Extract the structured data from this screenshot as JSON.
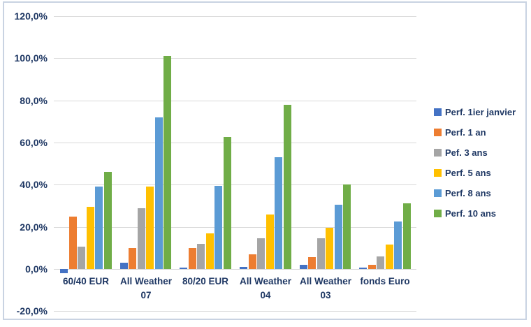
{
  "colors": {
    "text": "#1F3864",
    "gridline": "#D9D9D9",
    "frame_border": "#C9D3E2",
    "background": "#FFFFFF"
  },
  "chart_data": {
    "type": "bar",
    "title": "",
    "xlabel": "",
    "ylabel": "",
    "categories": [
      "60/40 EUR",
      "All Weather 07",
      "80/20 EUR",
      "All Weather 04",
      "All Weather 03",
      "fonds Euro"
    ],
    "category_display_lines": [
      [
        "60/40 EUR"
      ],
      [
        "All Weather",
        "07"
      ],
      [
        "80/20 EUR"
      ],
      [
        "All Weather",
        "04"
      ],
      [
        "All Weather",
        "03"
      ],
      [
        "fonds Euro"
      ]
    ],
    "series": [
      {
        "name": "Perf. 1ier janvier",
        "color": "#4472C4",
        "values": [
          -2,
          3,
          0.5,
          1,
          2,
          0.5
        ]
      },
      {
        "name": "Perf. 1 an",
        "color": "#ED7D31",
        "values": [
          25,
          10,
          10,
          7,
          5.5,
          2
        ]
      },
      {
        "name": "Pef. 3 ans",
        "color": "#A5A5A5",
        "values": [
          10.5,
          29,
          12,
          14.5,
          14.5,
          6
        ]
      },
      {
        "name": "Perf. 5 ans",
        "color": "#FFC000",
        "values": [
          29.5,
          39,
          17,
          26,
          19.5,
          11.5
        ]
      },
      {
        "name": "Perf. 8 ans",
        "color": "#5B9BD5",
        "values": [
          39,
          72,
          39.5,
          53,
          30.5,
          22.5
        ]
      },
      {
        "name": "Perf. 10 ans",
        "color": "#70AD47",
        "values": [
          46,
          101,
          62.5,
          78,
          40,
          31
        ]
      }
    ],
    "ylim": [
      -20,
      120
    ],
    "ytick_step": 20,
    "yticks": [
      {
        "value": 120,
        "label": "120,0%"
      },
      {
        "value": 100,
        "label": "100,0%"
      },
      {
        "value": 80,
        "label": "80,0%"
      },
      {
        "value": 60,
        "label": "60,0%"
      },
      {
        "value": 40,
        "label": "40,0%"
      },
      {
        "value": 20,
        "label": "20,0%"
      },
      {
        "value": 0,
        "label": "0,0%"
      },
      {
        "value": -20,
        "label": "-20,0%"
      }
    ],
    "grid": true,
    "legend_position": "right"
  }
}
